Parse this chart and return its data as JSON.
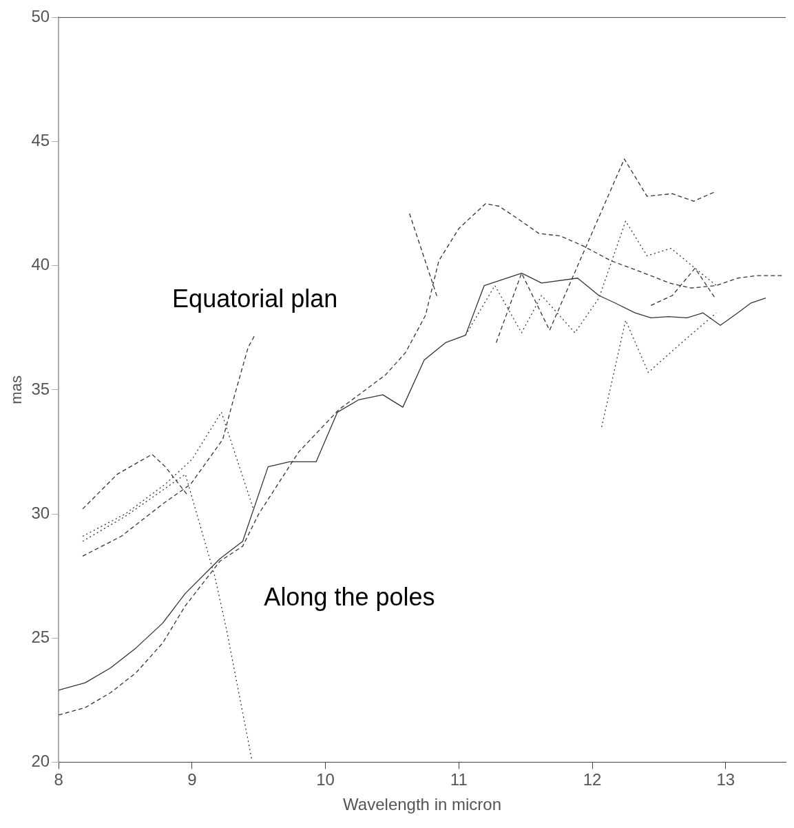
{
  "chart_data": {
    "type": "line",
    "xlabel": "Wavelength in micron",
    "ylabel": "mas",
    "xlim": [
      8,
      13.45
    ],
    "ylim": [
      20,
      50
    ],
    "xticks": [
      8,
      9,
      10,
      11,
      12,
      13
    ],
    "yticks": [
      20,
      25,
      30,
      35,
      40,
      45,
      50
    ],
    "grid": false,
    "legend": false,
    "marker": "none",
    "annotations": [
      "Equatorial plan",
      "Along the poles"
    ],
    "series": [
      {
        "color": "#333333",
        "line_style": "solid",
        "x": [
          8,
          8.2,
          8.39,
          8.58,
          8.78,
          8.95,
          9.21,
          9.38,
          9.57,
          9.73,
          9.93,
          10.09,
          10.25,
          10.43,
          10.58,
          10.74,
          10.9,
          11.05,
          11.19,
          11.47,
          11.62,
          11.89,
          12.05,
          12.17,
          12.32,
          12.44,
          12.57,
          12.71,
          12.83,
          12.96,
          13.09,
          13.19,
          13.3
        ],
        "values": [
          22.9,
          23.2,
          23.8,
          24.6,
          25.6,
          26.8,
          28.2,
          28.9,
          31.9,
          32.1,
          32.1,
          34.1,
          34.6,
          34.8,
          34.3,
          36.2,
          36.9,
          37.2,
          39.2,
          39.7,
          39.3,
          39.5,
          38.8,
          38.5,
          38.1,
          37.9,
          37.95,
          37.9,
          38.1,
          37.6,
          38.1,
          38.5,
          38.7
        ]
      },
      {
        "color": "#333333",
        "line_style": "dashed",
        "x": [
          8,
          8.2,
          8.39,
          8.58,
          8.78,
          8.95,
          9.21,
          9.38,
          9.5,
          9.8,
          10.1,
          10.3,
          10.45,
          10.6,
          10.75,
          10.85,
          11,
          11.2,
          11.3,
          11.44,
          11.6,
          11.76,
          11.93,
          12.14,
          12.39,
          12.58,
          12.74,
          12.93,
          13.09,
          13.23,
          13.43
        ],
        "values": [
          21.9,
          22.2,
          22.8,
          23.6,
          24.8,
          26.3,
          28.1,
          28.7,
          30,
          32.5,
          34.2,
          35,
          35.6,
          36.5,
          38,
          40.2,
          41.5,
          42.5,
          42.4,
          41.9,
          41.3,
          41.2,
          40.8,
          40.2,
          39.7,
          39.3,
          39.1,
          39.2,
          39.5,
          39.6,
          39.6
        ]
      },
      {
        "color": "#333333",
        "line_style": "dashed",
        "x": [
          8.18,
          8.47,
          8.78,
          8.99,
          9.23,
          9.32,
          9.42,
          9.47,
          null,
          10.63,
          10.84,
          null,
          11.28,
          11.47,
          11.68,
          11.85,
          12.24,
          12.41,
          12.6,
          12.76,
          12.93
        ],
        "values": [
          28.3,
          29.1,
          30.4,
          31.2,
          33,
          34.8,
          36.7,
          37.2,
          null,
          42.1,
          38.7,
          null,
          36.9,
          39.7,
          37.4,
          39.5,
          44.3,
          42.8,
          42.9,
          42.6,
          43
        ]
      },
      {
        "color": "#333333",
        "line_style": "dotted",
        "x": [
          8.18,
          8.5,
          8.8,
          9,
          9.22,
          9.46
        ],
        "values": [
          29.1,
          30,
          31.2,
          32.2,
          34.1,
          30.2
        ]
      },
      {
        "color": "#333333",
        "line_style": "dotted",
        "x": [
          8.18,
          8.5,
          8.95,
          9.17,
          9.26,
          9.45,
          null,
          12.07,
          12.25,
          12.42,
          12.67,
          12.93
        ],
        "values": [
          28.9,
          29.9,
          31.6,
          27.5,
          25.3,
          20.05,
          null,
          33.5,
          37.8,
          35.7,
          36.9,
          38.1
        ]
      },
      {
        "color": "#333333",
        "line_style": "dashed",
        "x": [
          8.18,
          8.44,
          8.7,
          8.8,
          8.96,
          null,
          12.44,
          12.6,
          12.77,
          12.92
        ],
        "values": [
          30.2,
          31.6,
          32.4,
          31.9,
          30.8,
          null,
          38.4,
          38.8,
          39.9,
          38.7
        ]
      },
      {
        "color": "#333333",
        "line_style": "dotted",
        "x": [
          11.05,
          11.27,
          11.47,
          11.62,
          11.87,
          12.05,
          12.25,
          12.41,
          12.59,
          12.77,
          12.93
        ],
        "values": [
          37.2,
          39.2,
          37.3,
          38.8,
          37.3,
          38.7,
          41.8,
          40.4,
          40.7,
          39.9,
          39.2
        ]
      }
    ]
  }
}
